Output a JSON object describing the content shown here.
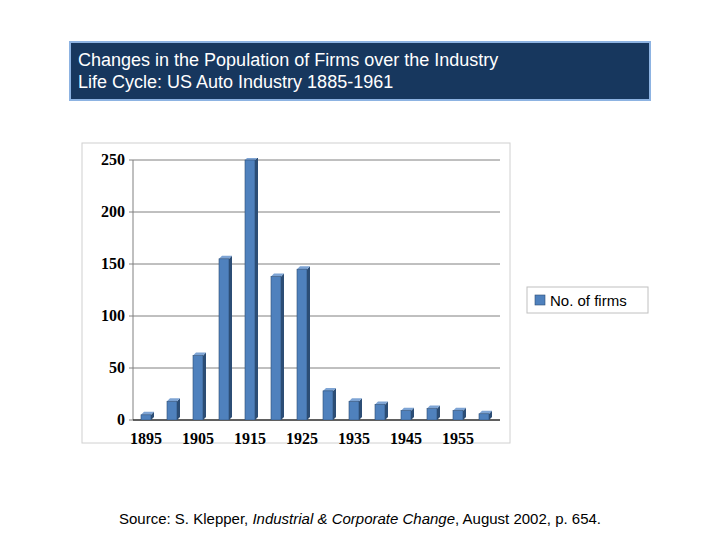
{
  "chart_data": {
    "type": "bar",
    "title": "Changes in the Population of Firms over the Industry Life Cycle: US Auto Industry 1885-1961",
    "categories": [
      "1895",
      null,
      "1905",
      null,
      "1915",
      null,
      "1925",
      null,
      "1935",
      null,
      "1945",
      null,
      "1955",
      null
    ],
    "series": [
      {
        "name": "No. of firms",
        "color": "#4f81bd",
        "values": [
          5,
          18,
          62,
          155,
          250,
          138,
          145,
          28,
          18,
          15,
          9,
          11,
          9,
          6
        ]
      }
    ],
    "ylim": [
      0,
      250
    ],
    "yticks": [
      0,
      50,
      100,
      150,
      200,
      250
    ],
    "grid": true,
    "legend": "right",
    "source": {
      "prefix": "Source: S. Klepper, ",
      "journal": "Industrial & Corporate Change",
      "suffix": ", August 2002, p. 654."
    }
  }
}
